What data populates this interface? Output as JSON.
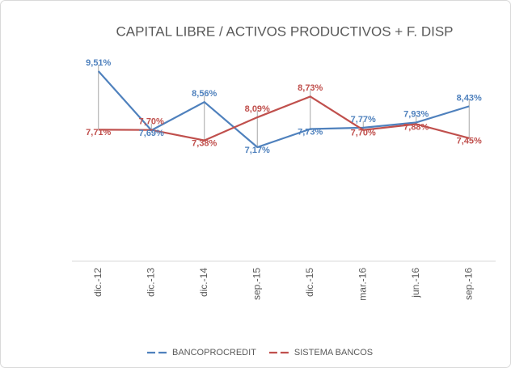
{
  "chart_data": {
    "type": "line",
    "title": "CAPITAL LIBRE / ACTIVOS PRODUCTIVOS + F. DISP",
    "categories": [
      "dic.-12",
      "dic.-13",
      "dic.-14",
      "sep.-15",
      "dic.-15",
      "mar.-16",
      "jun.-16",
      "sep.-16"
    ],
    "series": [
      {
        "name": "BANCOPROCREDIT",
        "color": "#4f81bd",
        "values": [
          9.51,
          7.69,
          8.56,
          7.17,
          7.73,
          7.77,
          7.93,
          8.43
        ],
        "value_labels": [
          "9,51%",
          "7,69%",
          "8,56%",
          "7,17%",
          "7,73%",
          "7,77%",
          "7,93%",
          "8,43%"
        ]
      },
      {
        "name": "SISTEMA BANCOS",
        "color": "#c0504d",
        "values": [
          7.71,
          7.7,
          7.38,
          8.09,
          8.73,
          7.7,
          7.88,
          7.45
        ],
        "value_labels": [
          "7,71%",
          "7,70%",
          "7,38%",
          "8,09%",
          "8,73%",
          "7,70%",
          "7,88%",
          "7,45%"
        ]
      }
    ],
    "legend": "bottom"
  }
}
